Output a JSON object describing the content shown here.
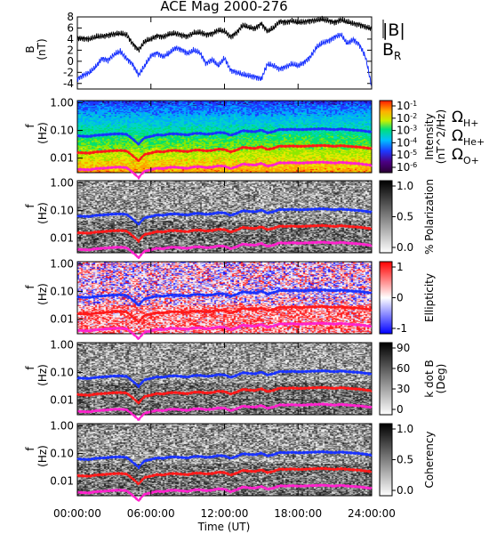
{
  "chart_data": {
    "type": "multi-panel spectrogram",
    "title": "ACE Mag 2000-276",
    "xlabel": "Time (UT)",
    "x_ticks": [
      "00:00:00",
      "06:00:00",
      "12:00:00",
      "18:00:00",
      "24:00:00"
    ],
    "xlim_hours": [
      0,
      24
    ],
    "line_panel": {
      "ylabel": "B",
      "yunit": "(nT)",
      "ylim": [
        -5,
        8
      ],
      "yticks": [
        -4,
        -2,
        0,
        2,
        4,
        6,
        8
      ],
      "series": [
        {
          "name": "|B|",
          "color": "#000000",
          "x": [
            0,
            0.5,
            1,
            1.5,
            2,
            2.5,
            3,
            3.5,
            4,
            4.5,
            5,
            5.5,
            6,
            6.5,
            7,
            7.5,
            8,
            8.5,
            9,
            9.5,
            10,
            10.5,
            11,
            11.5,
            12,
            12.5,
            13,
            13.5,
            14,
            14.5,
            15,
            15.5,
            16,
            16.5,
            17,
            17.5,
            18,
            18.5,
            19,
            19.5,
            20,
            20.5,
            21,
            21.5,
            22,
            22.5,
            23,
            23.5,
            24
          ],
          "values": [
            4.2,
            4.1,
            4.0,
            4.4,
            4.5,
            4.7,
            4.9,
            5.0,
            4.8,
            3.2,
            2.0,
            3.6,
            4.0,
            4.6,
            4.4,
            4.9,
            5.0,
            4.7,
            4.5,
            5.1,
            5.2,
            4.8,
            5.0,
            5.6,
            5.4,
            4.4,
            5.2,
            6.5,
            6.1,
            5.9,
            6.8,
            5.4,
            6.0,
            7.2,
            7.0,
            7.3,
            7.0,
            7.1,
            7.3,
            7.4,
            7.6,
            7.3,
            7.0,
            7.5,
            7.1,
            6.8,
            6.6,
            6.2,
            5.8
          ]
        },
        {
          "name": "B_R",
          "color": "#1a33ff",
          "x": [
            0,
            0.5,
            1,
            1.5,
            2,
            2.5,
            3,
            3.5,
            4,
            4.5,
            5,
            5.5,
            6,
            6.5,
            7,
            7.5,
            8,
            8.5,
            9,
            9.5,
            10,
            10.5,
            11,
            11.5,
            12,
            12.5,
            13,
            13.5,
            14,
            14.5,
            15,
            15.5,
            16,
            16.5,
            17,
            17.5,
            18,
            18.5,
            19,
            19.5,
            20,
            20.5,
            21,
            21.5,
            22,
            22.5,
            23,
            23.5,
            24
          ],
          "values": [
            -3.2,
            -2.5,
            -2.0,
            -1.0,
            0.5,
            0.2,
            1.2,
            1.8,
            0.5,
            -0.5,
            -2.5,
            -0.8,
            1.0,
            1.5,
            0.8,
            1.5,
            2.4,
            2.1,
            1.4,
            2.0,
            1.5,
            -0.4,
            0.3,
            -0.8,
            0.6,
            -1.6,
            -2.0,
            -2.4,
            -2.6,
            -2.8,
            -3.2,
            -0.5,
            -0.8,
            -1.4,
            -1.0,
            -0.5,
            -0.8,
            -0.2,
            0.8,
            2.5,
            3.3,
            3.7,
            4.4,
            4.8,
            3.2,
            3.9,
            3.0,
            0.8,
            -4.5
          ]
        }
      ]
    },
    "spectrogram_panels": [
      {
        "kind": "color",
        "colorbar_label": "Intensity",
        "colorbar_unit": "(nT^2/Hz)",
        "colorbar_ticks": [
          "10-1",
          "10-2",
          "10-3",
          "10-4",
          "10-5",
          "10-6"
        ]
      },
      {
        "kind": "gray",
        "colorbar_label": "% Polarization",
        "colorbar_ticks": [
          "1.0",
          "0.5",
          "0.0"
        ]
      },
      {
        "kind": "rwb",
        "colorbar_label": "Ellipticity",
        "colorbar_ticks": [
          "1",
          "0",
          "-1"
        ]
      },
      {
        "kind": "gray",
        "colorbar_label": "k dot B",
        "colorbar_unit": "(Deg)",
        "colorbar_ticks": [
          "90",
          "60",
          "30",
          "0"
        ]
      },
      {
        "kind": "gray",
        "colorbar_label": "Coherency",
        "colorbar_ticks": [
          "1.0",
          "0.5",
          "0.0"
        ]
      }
    ],
    "spectrogram_yaxis": {
      "label": "f",
      "unit": "(Hz)",
      "scale": "log",
      "ylim": [
        0.003,
        1.2
      ],
      "yticks": [
        "0.01",
        "0.10",
        "1.00"
      ]
    },
    "gyrofrequency_lines": {
      "x": [
        0,
        0.5,
        1,
        1.5,
        2,
        2.5,
        3,
        3.5,
        4,
        4.5,
        5,
        5.5,
        6,
        6.5,
        7,
        7.5,
        8,
        8.5,
        9,
        9.5,
        10,
        10.5,
        11,
        11.5,
        12,
        12.5,
        13,
        13.5,
        14,
        14.5,
        15,
        15.5,
        16,
        16.5,
        17,
        17.5,
        18,
        18.5,
        19,
        19.5,
        20,
        20.5,
        21,
        21.5,
        22,
        22.5,
        23,
        23.5,
        24
      ],
      "series": [
        {
          "name": "Ω_H+",
          "color": "#1a33ff",
          "scale": 1
        },
        {
          "name": "Ω_He+",
          "color": "#ff1a1a",
          "scale": 0.25
        },
        {
          "name": "Ω_O+",
          "color": "#ff22cc",
          "scale": 0.0625
        }
      ],
      "base_Hz": [
        0.064,
        0.062,
        0.061,
        0.067,
        0.069,
        0.072,
        0.075,
        0.076,
        0.073,
        0.049,
        0.031,
        0.055,
        0.061,
        0.07,
        0.067,
        0.075,
        0.076,
        0.072,
        0.069,
        0.078,
        0.079,
        0.073,
        0.076,
        0.085,
        0.082,
        0.067,
        0.079,
        0.099,
        0.093,
        0.09,
        0.104,
        0.082,
        0.091,
        0.11,
        0.107,
        0.111,
        0.107,
        0.108,
        0.111,
        0.113,
        0.116,
        0.111,
        0.107,
        0.114,
        0.108,
        0.104,
        0.101,
        0.094,
        0.088
      ]
    }
  }
}
